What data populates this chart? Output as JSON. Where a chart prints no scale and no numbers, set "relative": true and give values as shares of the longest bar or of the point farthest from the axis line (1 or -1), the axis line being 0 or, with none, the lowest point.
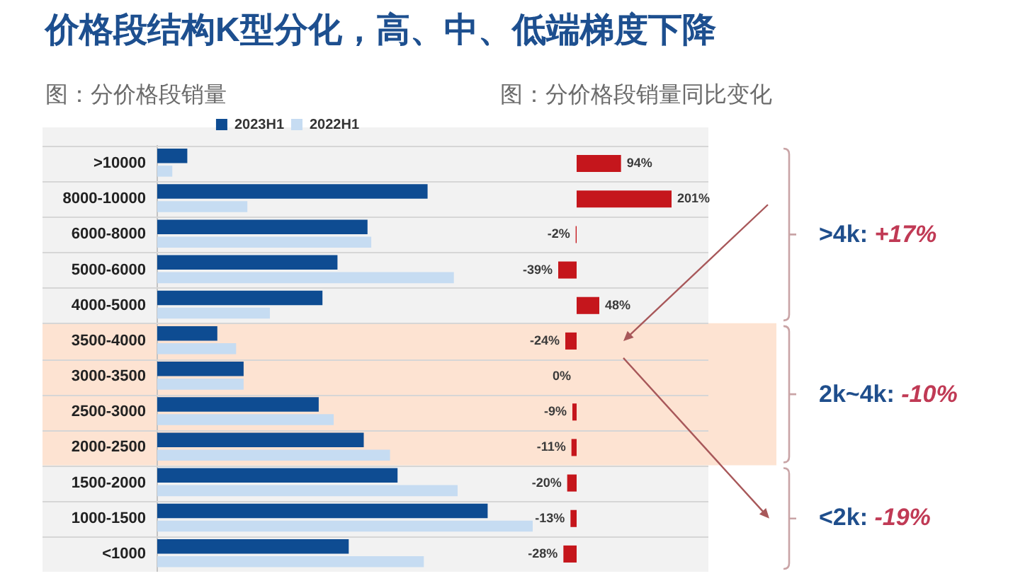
{
  "chart_data": [
    {
      "type": "bar",
      "title": "价格段结构K型分化，高、中、低端梯度下降",
      "subtitle": "图：分价格段销量",
      "orientation": "horizontal",
      "relative": true,
      "categories": [
        ">10000",
        "8000-10000",
        "6000-8000",
        "5000-6000",
        "4000-5000",
        "3500-4000",
        "3000-3500",
        "2500-3000",
        "2000-2500",
        "1500-2000",
        "1000-1500",
        "<1000"
      ],
      "series": [
        {
          "name": "2023H1",
          "color": "#0e4c92",
          "values": [
            0.08,
            0.72,
            0.56,
            0.48,
            0.44,
            0.16,
            0.23,
            0.43,
            0.55,
            0.64,
            0.88,
            0.51
          ]
        },
        {
          "name": "2022H1",
          "color": "#c6dcf2",
          "values": [
            0.04,
            0.24,
            0.57,
            0.79,
            0.3,
            0.21,
            0.23,
            0.47,
            0.62,
            0.8,
            1,
            0.71
          ]
        }
      ],
      "bands": [
        {
          "axis": "y",
          "from": "3500-4000",
          "to": "2000-2500",
          "color": "#fde3d2"
        }
      ],
      "legend": "top",
      "grid": "y"
    },
    {
      "type": "bar",
      "title": "图：分价格段销量同比变化",
      "orientation": "horizontal",
      "categories": [
        ">10000",
        "8000-10000",
        "6000-8000",
        "5000-6000",
        "4000-5000",
        "3500-4000",
        "3000-3500",
        "2500-3000",
        "2000-2500",
        "1500-2000",
        "1000-1500",
        "<1000"
      ],
      "values": [
        94,
        201,
        -2,
        -39,
        48,
        -24,
        0,
        -9,
        -11,
        -20,
        -13,
        -28
      ],
      "color": "#c5161c",
      "value_labels": [
        "94%",
        "201%",
        "-2%",
        "-39%",
        "48%",
        "-24%",
        "0%",
        "-9%",
        "-11%",
        "-20%",
        "-13%",
        "-28%"
      ],
      "annotations": [
        ">4k: +17%",
        "2k~4k: -10%",
        "<2k: -19%"
      ],
      "grid": "y",
      "tick_labels": false
    }
  ]
}
